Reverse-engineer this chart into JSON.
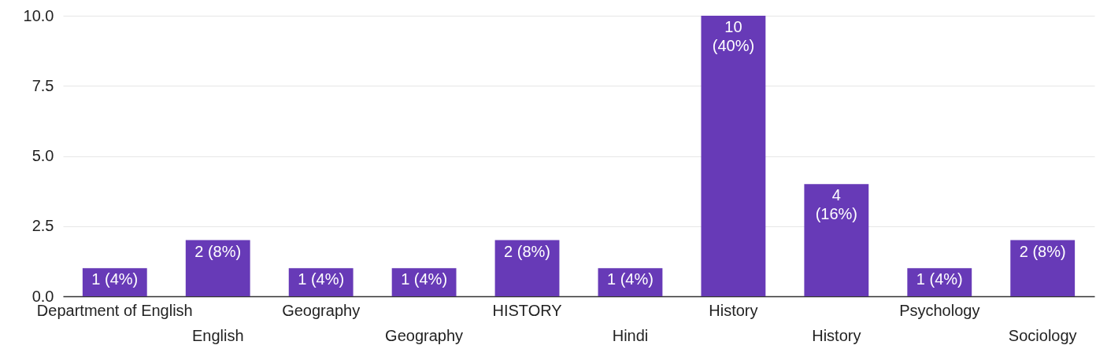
{
  "chart_data": {
    "type": "bar",
    "categories": [
      "Department of English",
      "English",
      "Geography",
      "Geography",
      "HISTORY",
      "Hindi",
      "History",
      "History",
      "Psychology",
      "Sociology"
    ],
    "values": [
      1,
      2,
      1,
      1,
      2,
      1,
      10,
      4,
      1,
      2
    ],
    "color": "#673ab7",
    "value_labels": [
      "1 (4%)",
      "2 (8%)",
      "1 (4%)",
      "1 (4%)",
      "2 (8%)",
      "1 (4%)",
      "10\n(40%)",
      "4\n(16%)",
      "1 (4%)",
      "2 (8%)"
    ],
    "ylim": [
      0,
      10
    ],
    "yticks": [
      {
        "value": 0,
        "label": "0.0"
      },
      {
        "value": 2.5,
        "label": "2.5"
      },
      {
        "value": 5,
        "label": "5.0"
      },
      {
        "value": 7.5,
        "label": "7.5"
      },
      {
        "value": 10,
        "label": "10.0"
      }
    ],
    "grid": "y"
  }
}
